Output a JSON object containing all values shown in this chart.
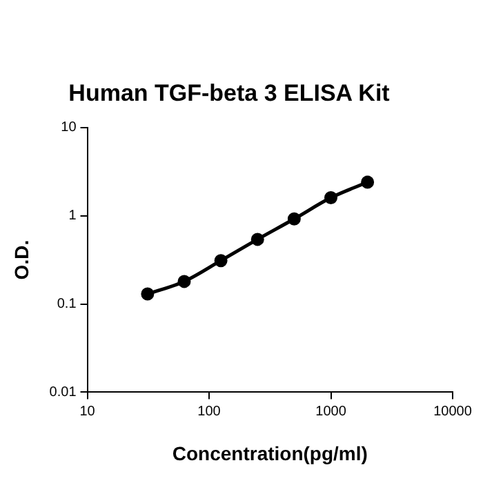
{
  "chart_data": {
    "type": "line",
    "title": "Human TGF-beta 3 ELISA Kit",
    "xlabel": "Concentration(pg/ml)",
    "ylabel": "O.D.",
    "x": [
      31.25,
      62.5,
      125,
      250,
      500,
      1000,
      2000
    ],
    "series": [
      {
        "color": "#000000",
        "values": [
          0.13,
          0.18,
          0.31,
          0.54,
          0.92,
          1.6,
          2.4
        ]
      }
    ],
    "log": "xy",
    "xlim": [
      10,
      10000
    ],
    "xticks": [
      10,
      100,
      1000,
      10000
    ],
    "ylim": [
      0.01,
      10
    ],
    "yticks": [
      0.01,
      0.1,
      1,
      10
    ],
    "grid": false,
    "legend": false,
    "marker": "circle",
    "line_style": "solid"
  }
}
